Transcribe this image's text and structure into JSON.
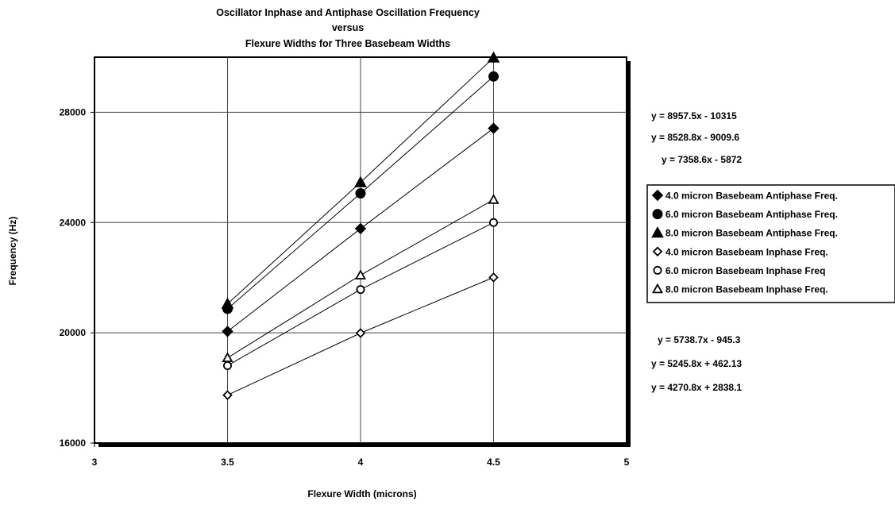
{
  "chart_data": {
    "type": "line",
    "title_lines": [
      "Oscillator Inphase and Antiphase Oscillation Frequency",
      "versus",
      "Flexure Widths for Three Basebeam Widths"
    ],
    "xlabel": "Flexure Width (microns)",
    "ylabel": "Frequency (Hz)",
    "xlim": [
      3,
      5
    ],
    "ylim": [
      16000,
      30000
    ],
    "x_ticks": [
      "3",
      "3.5",
      "4",
      "4.5",
      "5"
    ],
    "x_tick_values": [
      3,
      3.5,
      4,
      4.5,
      5
    ],
    "y_ticks": [
      "16000",
      "20000",
      "24000",
      "28000"
    ],
    "y_tick_values": [
      16000,
      20000,
      24000,
      28000
    ],
    "grid": true,
    "legend_position": "right",
    "x": [
      3.5,
      4,
      4.5
    ],
    "series": [
      {
        "name": "4.0 micron Basebeam Antiphase Freq.",
        "marker": "diamond-filled",
        "values": [
          20050,
          23780,
          27420
        ]
      },
      {
        "name": "6.0 micron Basebeam Antiphase Freq.",
        "marker": "circle-filled",
        "values": [
          20870,
          25060,
          29300
        ]
      },
      {
        "name": "8.0 micron Basebeam Antiphase Freq.",
        "marker": "triangle-filled",
        "values": [
          21050,
          25460,
          29980
        ]
      },
      {
        "name": "4.0 micron Basebeam Inphase Freq.",
        "marker": "diamond-open",
        "values": [
          17740,
          19990,
          22010
        ]
      },
      {
        "name": "6.0 micron Basebeam Inphase Freq",
        "marker": "circle-open",
        "values": [
          18810,
          21570,
          24000
        ]
      },
      {
        "name": "8.0 micron Basebeam Inphase Freq.",
        "marker": "triangle-open",
        "values": [
          19090,
          22090,
          24830
        ]
      }
    ],
    "equations_top": [
      "y = 8957.5x - 10315",
      "y = 8528.8x - 9009.6",
      "y = 7358.6x - 5872"
    ],
    "equations_bottom": [
      "y = 5738.7x - 945.3",
      "y = 5245.8x + 462.13",
      "y = 4270.8x + 2838.1"
    ]
  }
}
